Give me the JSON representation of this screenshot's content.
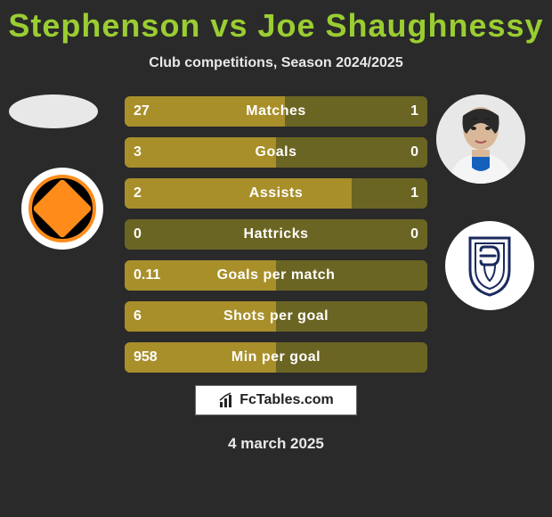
{
  "title": "Stephenson vs Joe Shaughnessy",
  "subtitle": "Club competitions, Season 2024/2025",
  "date": "4 march 2025",
  "footer_brand": "FcTables.com",
  "colors": {
    "background": "#2a2a2a",
    "title": "#9acd32",
    "bar_bg": "#6b6523",
    "bar_fill": "#a88f2a",
    "text": "#ffffff"
  },
  "bars": [
    {
      "label": "Matches",
      "left_val": "27",
      "right_val": "1",
      "left_pct": 50,
      "right_pct": 3
    },
    {
      "label": "Goals",
      "left_val": "3",
      "right_val": "0",
      "left_pct": 50,
      "right_pct": 0
    },
    {
      "label": "Assists",
      "left_val": "2",
      "right_val": "1",
      "left_pct": 50,
      "right_pct": 25
    },
    {
      "label": "Hattricks",
      "left_val": "0",
      "right_val": "0",
      "left_pct": 0,
      "right_pct": 0
    },
    {
      "label": "Goals per match",
      "left_val": "0.11",
      "right_val": "",
      "left_pct": 50,
      "right_pct": 0
    },
    {
      "label": "Shots per goal",
      "left_val": "6",
      "right_val": "",
      "left_pct": 50,
      "right_pct": 0
    },
    {
      "label": "Min per goal",
      "left_val": "958",
      "right_val": "",
      "left_pct": 50,
      "right_pct": 0
    }
  ]
}
